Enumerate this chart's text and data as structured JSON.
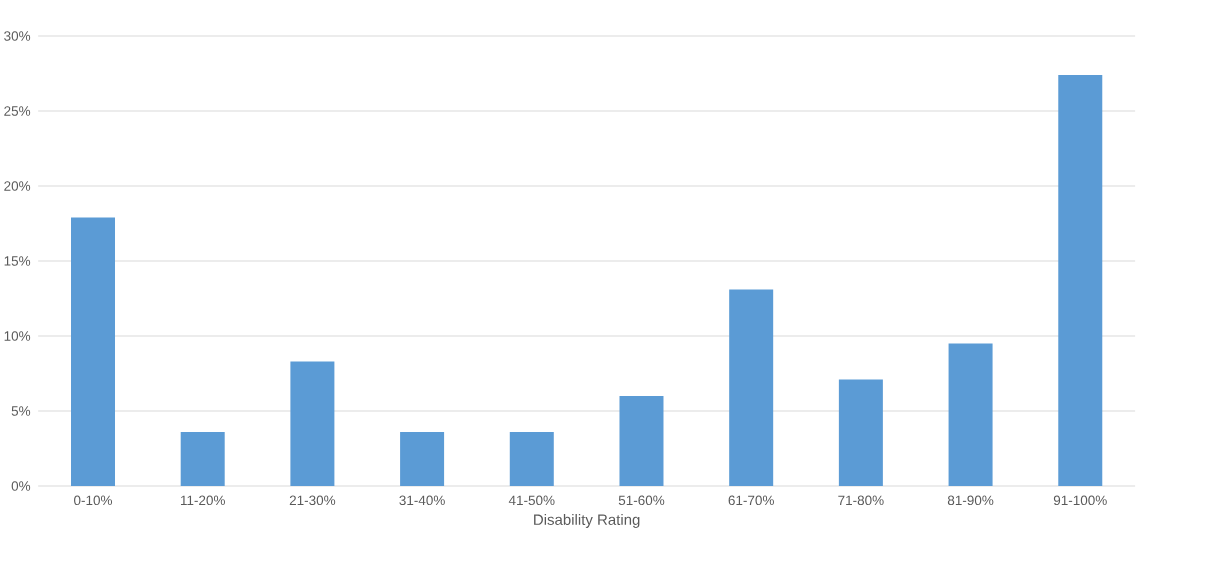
{
  "chart_data": {
    "type": "bar",
    "xlabel": "Disability Rating",
    "categories": [
      "0-10%",
      "11-20%",
      "21-30%",
      "31-40%",
      "41-50%",
      "51-60%",
      "61-70%",
      "71-80%",
      "81-90%",
      "91-100%"
    ],
    "values": [
      17.9,
      3.6,
      8.3,
      3.6,
      3.6,
      6.0,
      13.1,
      7.1,
      9.5,
      27.4
    ],
    "color": "#5b9bd5",
    "ylim": [
      0,
      30
    ],
    "yticks": [
      {
        "value": 0,
        "label": "0%"
      },
      {
        "value": 5,
        "label": "5%"
      },
      {
        "value": 10,
        "label": "10%"
      },
      {
        "value": 15,
        "label": "15%"
      },
      {
        "value": 20,
        "label": "20%"
      },
      {
        "value": 25,
        "label": "25%"
      },
      {
        "value": 30,
        "label": "30%"
      }
    ],
    "grid": "y"
  }
}
